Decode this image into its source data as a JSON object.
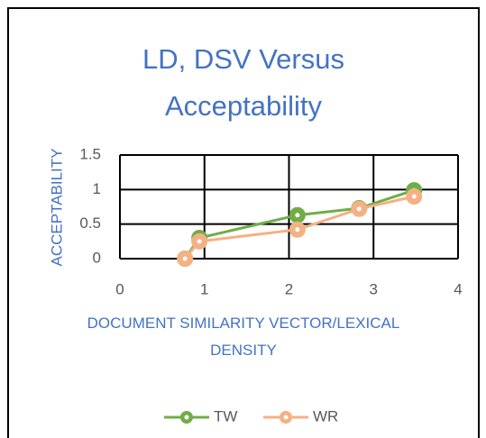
{
  "chart_data": {
    "type": "line",
    "title": "LD, DSV Versus Acceptability",
    "x_label": "DOCUMENT SIMILARITY VECTOR/LEXICAL DENSITY",
    "y_label": "ACCEPTABILITY",
    "x": [
      0.77,
      0.94,
      2.1,
      2.83,
      3.48
    ],
    "series": [
      {
        "name": "TW",
        "color": "#70ad47",
        "values": [
          0,
          0.3,
          0.63,
          0.73,
          0.99
        ]
      },
      {
        "name": "WR",
        "color": "#f4b183",
        "values": [
          0,
          0.25,
          0.42,
          0.72,
          0.9
        ]
      }
    ],
    "xlim": [
      0,
      4
    ],
    "xticks": [
      0,
      1,
      2,
      3,
      4
    ],
    "ylim": [
      0,
      1.5
    ],
    "yticks": [
      0,
      0.5,
      1,
      1.5
    ],
    "grid": true,
    "legend": "bottom"
  }
}
